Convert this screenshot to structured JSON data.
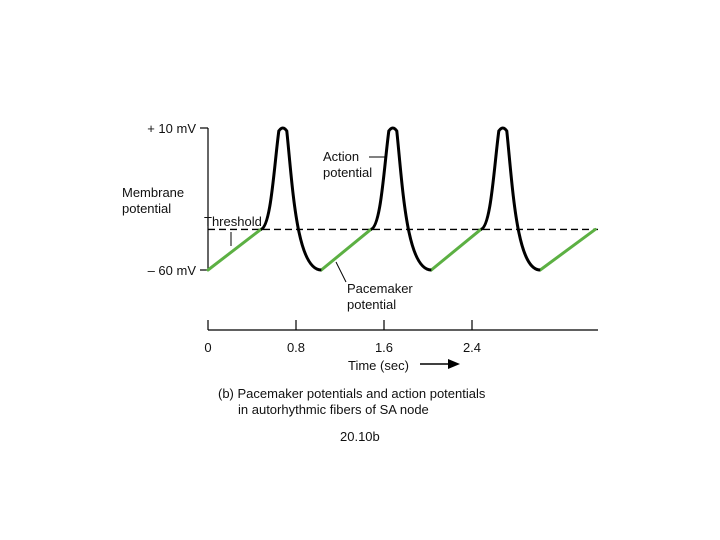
{
  "chart_data": {
    "type": "line",
    "title": "",
    "ylabel_lines": [
      "Membrane",
      "potential"
    ],
    "xlabel": "Time (sec)",
    "ytick_labels": [
      "+ 10 mV",
      "– 60 mV"
    ],
    "ylim": [
      -60,
      10
    ],
    "xlim": [
      0,
      3.6
    ],
    "x_ticks": [
      0,
      0.8,
      1.6,
      2.4
    ],
    "x_tick_labels": [
      "0",
      "0.8",
      "1.6",
      "2.4"
    ],
    "threshold_label": "Threshold",
    "threshold_mv": -40,
    "annotations": {
      "action_potential": [
        "Action",
        "potential"
      ],
      "pacemaker_potential": [
        "Pacemaker",
        "potential"
      ]
    },
    "action_potential_peaks_sec": [
      0.68,
      1.68,
      2.68
    ],
    "pacemaker_segments": [
      {
        "x": [
          0.0,
          0.48
        ],
        "y": [
          -60,
          -40
        ]
      },
      {
        "x": [
          1.03,
          1.48
        ],
        "y": [
          -60,
          -40
        ]
      },
      {
        "x": [
          2.03,
          2.48
        ],
        "y": [
          -60,
          -40
        ]
      },
      {
        "x": [
          3.02,
          3.52
        ],
        "y": [
          -60,
          -40
        ]
      }
    ],
    "colors": {
      "trace": "#000000",
      "pacemaker": "#5cb043",
      "threshold": "#000000"
    }
  },
  "caption_lines": [
    "(b) Pacemaker potentials and action potentials",
    "in autorhythmic fibers of SA node"
  ],
  "figure_id": "20.10b"
}
